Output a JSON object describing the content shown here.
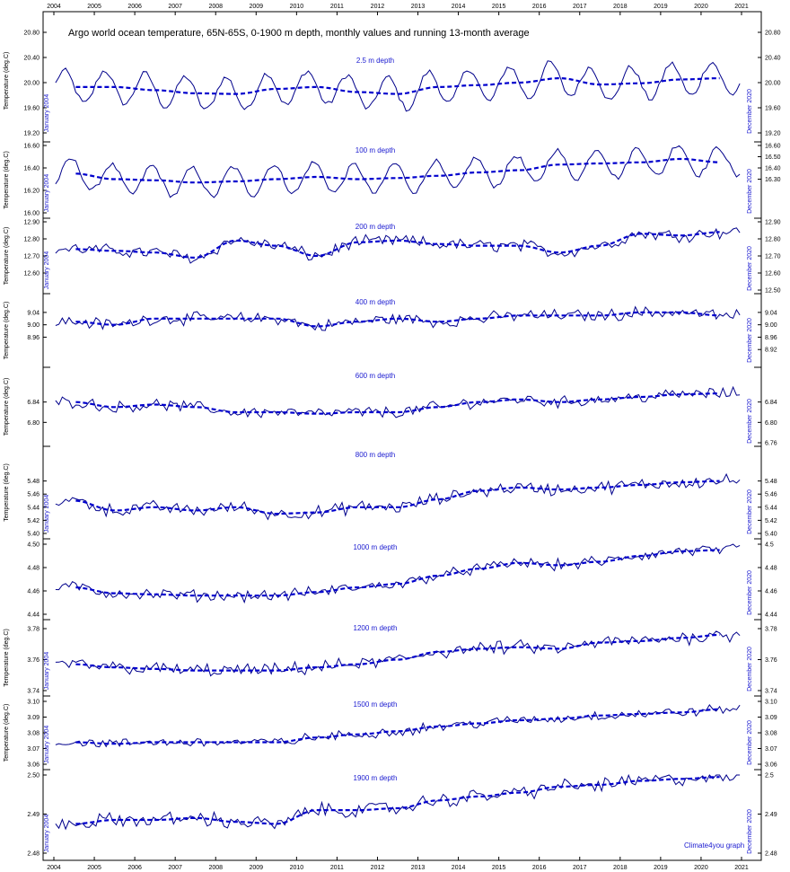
{
  "title": "Argo world ocean temperature, 65N-65S, 0-1900 m depth, monthly values and running 13-month average",
  "credit": "Climate4you graph",
  "side_left": "January 2004",
  "side_right": "December 2020",
  "y_axis_label": "Temperature (deg.C)",
  "x_years": [
    "2004",
    "2005",
    "2006",
    "2007",
    "2008",
    "2009",
    "2010",
    "2011",
    "2012",
    "2013",
    "2014",
    "2015",
    "2016",
    "2017",
    "2018",
    "2019",
    "2020",
    "2021"
  ],
  "colors": {
    "monthly": "#00008b",
    "average": "#0000cd",
    "text_blue": "#1a1ad0"
  },
  "chart_data": [
    {
      "type": "line",
      "depth_label": "2.5 m depth",
      "ylim": [
        19.2,
        20.8
      ],
      "ticks_left": [
        "20.80",
        "20.40",
        "20.00",
        "19.60",
        "19.20"
      ],
      "ticks_right": [
        "20.80",
        "20.40",
        "20.00",
        "19.60",
        "19.20"
      ],
      "tick_values_left": [
        20.8,
        20.4,
        20.0,
        19.6,
        19.2
      ],
      "tick_values_right": [
        20.8,
        20.4,
        20.0,
        19.6,
        19.2
      ],
      "show_ylabel": true,
      "show_side_left": true,
      "series": [
        {
          "name": "monthly",
          "kind": "seasonal",
          "amp": 0.26,
          "peak": 2.6
        },
        {
          "name": "13-month average",
          "kind": "average",
          "x": [
            2004.5,
            2005.5,
            2006.5,
            2007.5,
            2008.5,
            2009.5,
            2010.5,
            2011.5,
            2012.5,
            2013.5,
            2014.5,
            2015.5,
            2016.5,
            2017.5,
            2018.5,
            2019.5,
            2020.5
          ],
          "values": [
            19.93,
            19.93,
            19.88,
            19.83,
            19.82,
            19.9,
            19.93,
            19.85,
            19.82,
            19.93,
            19.96,
            20.0,
            20.07,
            19.97,
            19.99,
            20.05,
            20.07
          ]
        }
      ]
    },
    {
      "type": "line",
      "depth_label": "100 m depth",
      "ylim": [
        16.0,
        16.6
      ],
      "ticks_left": [
        "16.60",
        "16.40",
        "16.20",
        "16.00"
      ],
      "ticks_right": [
        "16.60",
        "16.50",
        "16.40",
        "16.30"
      ],
      "tick_values_left": [
        16.6,
        16.4,
        16.2,
        16.0
      ],
      "tick_values_right": [
        16.6,
        16.5,
        16.4,
        16.3
      ],
      "show_ylabel": true,
      "show_side_left": true,
      "series": [
        {
          "name": "monthly",
          "kind": "seasonal",
          "amp": 0.13,
          "peak": 4.6
        },
        {
          "name": "13-month average",
          "kind": "average",
          "x": [
            2004.5,
            2005.5,
            2006.5,
            2007.5,
            2008.5,
            2009.5,
            2010.5,
            2011.5,
            2012.5,
            2013.5,
            2014.5,
            2015.5,
            2016.5,
            2017.5,
            2018.5,
            2019.5,
            2020.5
          ],
          "values": [
            16.35,
            16.3,
            16.29,
            16.27,
            16.28,
            16.3,
            16.32,
            16.3,
            16.31,
            16.33,
            16.36,
            16.38,
            16.43,
            16.44,
            16.45,
            16.48,
            16.45
          ]
        }
      ]
    },
    {
      "type": "line",
      "depth_label": "200 m depth",
      "ylim": [
        12.5,
        12.9
      ],
      "ticks_left": [
        "12.90",
        "12.80",
        "12.70",
        "12.60"
      ],
      "ticks_right": [
        "12.90",
        "12.80",
        "12.70",
        "12.60",
        "12.50"
      ],
      "tick_values_left": [
        12.9,
        12.8,
        12.7,
        12.6
      ],
      "tick_values_right": [
        12.9,
        12.8,
        12.7,
        12.6,
        12.5
      ],
      "show_ylabel": true,
      "show_side_left": true,
      "series": [
        {
          "name": "monthly",
          "kind": "noise",
          "amp": 0.03
        },
        {
          "name": "13-month average",
          "kind": "average",
          "x": [
            2004.5,
            2005.5,
            2006.5,
            2007.5,
            2008.5,
            2009.5,
            2010.5,
            2011.5,
            2012.5,
            2013.5,
            2014.5,
            2015.5,
            2016.5,
            2017.5,
            2018.5,
            2019.5,
            2020.5
          ],
          "values": [
            12.74,
            12.73,
            12.72,
            12.69,
            12.79,
            12.76,
            12.7,
            12.78,
            12.79,
            12.77,
            12.76,
            12.76,
            12.72,
            12.76,
            12.83,
            12.82,
            12.84
          ]
        }
      ]
    },
    {
      "type": "line",
      "depth_label": "400 m depth",
      "ylim": [
        8.88,
        9.06
      ],
      "ticks_left": [
        "9.04",
        "9.00",
        "8.96"
      ],
      "ticks_right": [
        "9.04",
        "9.00",
        "8.96",
        "8.92"
      ],
      "tick_values_left": [
        9.04,
        9.0,
        8.96
      ],
      "tick_values_right": [
        9.04,
        9.0,
        8.96,
        8.92
      ],
      "show_ylabel": true,
      "show_side_left": false,
      "series": [
        {
          "name": "monthly",
          "kind": "noise",
          "amp": 0.016
        },
        {
          "name": "13-month average",
          "kind": "average",
          "x": [
            2004.5,
            2005.5,
            2006.5,
            2007.5,
            2008.5,
            2009.5,
            2010.5,
            2011.5,
            2012.5,
            2013.5,
            2014.5,
            2015.5,
            2016.5,
            2017.5,
            2018.5,
            2019.5,
            2020.5
          ],
          "values": [
            9.01,
            9.0,
            9.02,
            9.02,
            9.02,
            9.02,
            8.995,
            9.01,
            9.02,
            9.01,
            9.02,
            9.03,
            9.03,
            9.03,
            9.04,
            9.04,
            9.03
          ]
        }
      ]
    },
    {
      "type": "line",
      "depth_label": "600 m depth",
      "ylim": [
        6.76,
        6.88
      ],
      "ticks_left": [
        "6.84",
        "6.80"
      ],
      "ticks_right": [
        "6.84",
        "6.80",
        "6.76"
      ],
      "tick_values_left": [
        6.84,
        6.8
      ],
      "tick_values_right": [
        6.84,
        6.8,
        6.76
      ],
      "show_ylabel": true,
      "show_side_left": false,
      "series": [
        {
          "name": "monthly",
          "kind": "noise",
          "amp": 0.009
        },
        {
          "name": "13-month average",
          "kind": "average",
          "x": [
            2004.5,
            2005.5,
            2006.5,
            2007.5,
            2008.5,
            2009.5,
            2010.5,
            2011.5,
            2012.5,
            2013.5,
            2014.5,
            2015.5,
            2016.5,
            2017.5,
            2018.5,
            2019.5,
            2020.5
          ],
          "values": [
            6.84,
            6.83,
            6.835,
            6.83,
            6.82,
            6.82,
            6.817,
            6.82,
            6.82,
            6.83,
            6.84,
            6.845,
            6.84,
            6.845,
            6.85,
            6.855,
            6.857
          ]
        }
      ]
    },
    {
      "type": "line",
      "depth_label": "800 m depth",
      "ylim": [
        5.4,
        5.5
      ],
      "ticks_left": [
        "5.48",
        "5.46",
        "5.44",
        "5.42",
        "5.40"
      ],
      "ticks_right": [
        "5.48",
        "5.46",
        "5.44",
        "5.42",
        "5.40"
      ],
      "tick_values_left": [
        5.48,
        5.46,
        5.44,
        5.42,
        5.4
      ],
      "tick_values_right": [
        5.48,
        5.46,
        5.44,
        5.42,
        5.4
      ],
      "show_ylabel": true,
      "show_side_left": true,
      "series": [
        {
          "name": "monthly",
          "kind": "noise",
          "amp": 0.008
        },
        {
          "name": "13-month average",
          "kind": "average",
          "x": [
            2004.5,
            2005.5,
            2006.5,
            2007.5,
            2008.5,
            2009.5,
            2010.5,
            2011.5,
            2012.5,
            2013.5,
            2014.5,
            2015.5,
            2016.5,
            2017.5,
            2018.5,
            2019.5,
            2020.5
          ],
          "values": [
            5.45,
            5.435,
            5.44,
            5.435,
            5.44,
            5.43,
            5.432,
            5.44,
            5.44,
            5.452,
            5.465,
            5.47,
            5.467,
            5.47,
            5.474,
            5.478,
            5.48
          ]
        }
      ]
    },
    {
      "type": "line",
      "depth_label": "1000 m depth",
      "ylim": [
        4.44,
        4.5
      ],
      "ticks_left": [
        "4.50",
        "4.48",
        "4.46",
        "4.44"
      ],
      "ticks_right": [
        "4.5",
        "4.48",
        "4.46",
        "4.44"
      ],
      "tick_values_left": [
        4.5,
        4.48,
        4.46,
        4.44
      ],
      "tick_values_right": [
        4.5,
        4.48,
        4.46,
        4.44
      ],
      "show_ylabel": false,
      "show_side_left": false,
      "series": [
        {
          "name": "monthly",
          "kind": "noise",
          "amp": 0.004
        },
        {
          "name": "13-month average",
          "kind": "average",
          "x": [
            2004.5,
            2005.5,
            2006.5,
            2007.5,
            2008.5,
            2009.5,
            2010.5,
            2011.5,
            2012.5,
            2013.5,
            2014.5,
            2015.5,
            2016.5,
            2017.5,
            2018.5,
            2019.5,
            2020.5
          ],
          "values": [
            4.463,
            4.458,
            4.457,
            4.456,
            4.456,
            4.456,
            4.459,
            4.463,
            4.466,
            4.473,
            4.479,
            4.484,
            4.482,
            4.485,
            4.49,
            4.494,
            4.495
          ]
        }
      ]
    },
    {
      "type": "line",
      "depth_label": "1200 m depth",
      "ylim": [
        3.74,
        3.78
      ],
      "ticks_left": [
        "3.78",
        "3.76",
        "3.74"
      ],
      "ticks_right": [
        "3.78",
        "3.76",
        "3.74"
      ],
      "tick_values_left": [
        3.78,
        3.76,
        3.74
      ],
      "tick_values_right": [
        3.78,
        3.76,
        3.74
      ],
      "show_ylabel": true,
      "show_side_left": true,
      "series": [
        {
          "name": "monthly",
          "kind": "noise",
          "amp": 0.0035
        },
        {
          "name": "13-month average",
          "kind": "average",
          "x": [
            2004.5,
            2005.5,
            2006.5,
            2007.5,
            2008.5,
            2009.5,
            2010.5,
            2011.5,
            2012.5,
            2013.5,
            2014.5,
            2015.5,
            2016.5,
            2017.5,
            2018.5,
            2019.5,
            2020.5
          ],
          "values": [
            3.757,
            3.755,
            3.754,
            3.753,
            3.753,
            3.753,
            3.755,
            3.757,
            3.76,
            3.765,
            3.767,
            3.768,
            3.767,
            3.771,
            3.772,
            3.774,
            3.776
          ]
        }
      ]
    },
    {
      "type": "line",
      "depth_label": "1500 m depth",
      "ylim": [
        3.06,
        3.1
      ],
      "ticks_left": [
        "3.10",
        "3.09",
        "3.08",
        "3.07",
        "3.06"
      ],
      "ticks_right": [
        "3.10",
        "3.09",
        "3.08",
        "3.07",
        "3.06"
      ],
      "tick_values_left": [
        3.1,
        3.09,
        3.08,
        3.07,
        3.06
      ],
      "tick_values_right": [
        3.1,
        3.09,
        3.08,
        3.07,
        3.06
      ],
      "show_ylabel": true,
      "show_side_left": true,
      "series": [
        {
          "name": "monthly",
          "kind": "noise",
          "amp": 0.0025
        },
        {
          "name": "13-month average",
          "kind": "average",
          "x": [
            2004.5,
            2005.5,
            2006.5,
            2007.5,
            2008.5,
            2009.5,
            2010.5,
            2011.5,
            2012.5,
            2013.5,
            2014.5,
            2015.5,
            2016.5,
            2017.5,
            2018.5,
            2019.5,
            2020.5
          ],
          "values": [
            3.074,
            3.073,
            3.074,
            3.074,
            3.074,
            3.074,
            3.077,
            3.079,
            3.081,
            3.084,
            3.086,
            3.088,
            3.089,
            3.091,
            3.092,
            3.093,
            3.095
          ]
        }
      ]
    },
    {
      "type": "line",
      "depth_label": "1900 m depth",
      "ylim": [
        2.48,
        2.5
      ],
      "ticks_left": [
        "2.50",
        "2.49",
        "2.48"
      ],
      "ticks_right": [
        "2.5",
        "2.49",
        "2.48"
      ],
      "tick_values_left": [
        2.5,
        2.49,
        2.48
      ],
      "tick_values_right": [
        2.5,
        2.49,
        2.48
      ],
      "show_ylabel": false,
      "show_side_left": true,
      "series": [
        {
          "name": "monthly",
          "kind": "noise",
          "amp": 0.0015
        },
        {
          "name": "13-month average",
          "kind": "average",
          "x": [
            2004.5,
            2005.5,
            2006.5,
            2007.5,
            2008.5,
            2009.5,
            2010.5,
            2011.5,
            2012.5,
            2013.5,
            2014.5,
            2015.5,
            2016.5,
            2017.5,
            2018.5,
            2019.5,
            2020.5
          ],
          "values": [
            2.4875,
            2.4885,
            2.4885,
            2.489,
            2.488,
            2.4875,
            2.491,
            2.491,
            2.4915,
            2.4935,
            2.4945,
            2.4955,
            2.497,
            2.4975,
            2.4985,
            2.499,
            2.4995
          ]
        }
      ]
    }
  ]
}
